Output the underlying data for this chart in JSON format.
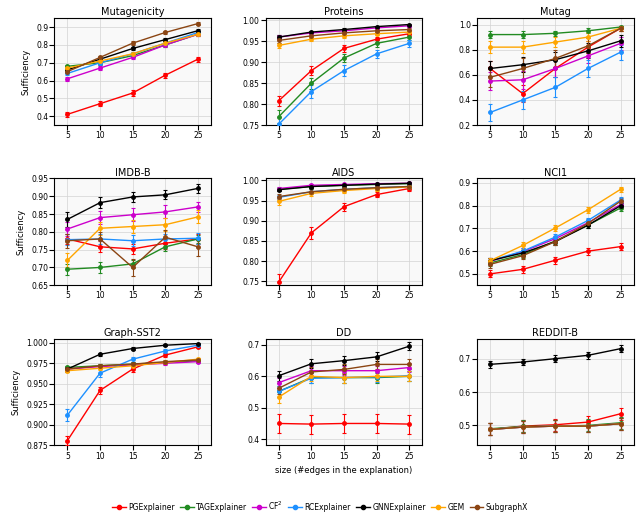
{
  "x": [
    5,
    10,
    15,
    20,
    25
  ],
  "datasets": {
    "Mutagenicity": {
      "PGExplainer": {
        "y": [
          0.41,
          0.47,
          0.53,
          0.63,
          0.72
        ],
        "err": [
          0.015,
          0.015,
          0.015,
          0.015,
          0.015
        ]
      },
      "TAGExplainer": {
        "y": [
          0.68,
          0.7,
          0.74,
          0.8,
          0.86
        ],
        "err": [
          0.01,
          0.01,
          0.01,
          0.01,
          0.01
        ]
      },
      "CF2": {
        "y": [
          0.61,
          0.67,
          0.73,
          0.8,
          0.86
        ],
        "err": [
          0.01,
          0.01,
          0.01,
          0.01,
          0.01
        ]
      },
      "RCExplainer": {
        "y": [
          0.64,
          0.7,
          0.75,
          0.81,
          0.87
        ],
        "err": [
          0.01,
          0.01,
          0.01,
          0.01,
          0.01
        ]
      },
      "GNNExplainer": {
        "y": [
          0.66,
          0.72,
          0.78,
          0.83,
          0.88
        ],
        "err": [
          0.01,
          0.01,
          0.01,
          0.01,
          0.01
        ]
      },
      "GEM": {
        "y": [
          0.67,
          0.71,
          0.75,
          0.81,
          0.86
        ],
        "err": [
          0.01,
          0.01,
          0.01,
          0.01,
          0.01
        ]
      },
      "SubgraphX": {
        "y": [
          0.65,
          0.73,
          0.81,
          0.87,
          0.92
        ],
        "err": [
          0.01,
          0.01,
          0.01,
          0.01,
          0.01
        ]
      }
    },
    "Proteins": {
      "PGExplainer": {
        "y": [
          0.808,
          0.88,
          0.933,
          0.955,
          0.968
        ],
        "err": [
          0.012,
          0.01,
          0.008,
          0.006,
          0.005
        ]
      },
      "TAGExplainer": {
        "y": [
          0.77,
          0.85,
          0.91,
          0.945,
          0.96
        ],
        "err": [
          0.015,
          0.013,
          0.01,
          0.008,
          0.007
        ]
      },
      "CF2": {
        "y": [
          0.96,
          0.97,
          0.975,
          0.982,
          0.987
        ],
        "err": [
          0.004,
          0.003,
          0.003,
          0.003,
          0.002
        ]
      },
      "RCExplainer": {
        "y": [
          0.752,
          0.83,
          0.88,
          0.92,
          0.945
        ],
        "err": [
          0.018,
          0.015,
          0.013,
          0.01,
          0.008
        ]
      },
      "GNNExplainer": {
        "y": [
          0.96,
          0.972,
          0.978,
          0.985,
          0.99
        ],
        "err": [
          0.004,
          0.003,
          0.003,
          0.002,
          0.002
        ]
      },
      "GEM": {
        "y": [
          0.94,
          0.955,
          0.963,
          0.968,
          0.972
        ],
        "err": [
          0.006,
          0.005,
          0.005,
          0.004,
          0.004
        ]
      },
      "SubgraphX": {
        "y": [
          0.952,
          0.963,
          0.97,
          0.975,
          0.978
        ],
        "err": [
          0.005,
          0.004,
          0.004,
          0.003,
          0.003
        ]
      }
    },
    "Mutag": {
      "PGExplainer": {
        "y": [
          0.65,
          0.45,
          0.65,
          0.82,
          0.97
        ],
        "err": [
          0.06,
          0.07,
          0.07,
          0.05,
          0.02
        ]
      },
      "TAGExplainer": {
        "y": [
          0.92,
          0.92,
          0.93,
          0.95,
          0.98
        ],
        "err": [
          0.03,
          0.03,
          0.02,
          0.02,
          0.01
        ]
      },
      "CF2": {
        "y": [
          0.55,
          0.56,
          0.65,
          0.75,
          0.85
        ],
        "err": [
          0.07,
          0.07,
          0.07,
          0.06,
          0.05
        ]
      },
      "RCExplainer": {
        "y": [
          0.3,
          0.4,
          0.5,
          0.65,
          0.78
        ],
        "err": [
          0.07,
          0.07,
          0.08,
          0.07,
          0.06
        ]
      },
      "GNNExplainer": {
        "y": [
          0.65,
          0.68,
          0.72,
          0.79,
          0.87
        ],
        "err": [
          0.06,
          0.06,
          0.06,
          0.06,
          0.05
        ]
      },
      "GEM": {
        "y": [
          0.82,
          0.82,
          0.86,
          0.9,
          0.97
        ],
        "err": [
          0.05,
          0.05,
          0.04,
          0.03,
          0.02
        ]
      },
      "SubgraphX": {
        "y": [
          0.58,
          0.65,
          0.73,
          0.83,
          0.97
        ],
        "err": [
          0.08,
          0.08,
          0.07,
          0.06,
          0.02
        ]
      }
    },
    "IMDB-B": {
      "PGExplainer": {
        "y": [
          0.78,
          0.758,
          0.752,
          0.768,
          0.78
        ],
        "err": [
          0.015,
          0.015,
          0.015,
          0.015,
          0.015
        ]
      },
      "TAGExplainer": {
        "y": [
          0.695,
          0.7,
          0.71,
          0.758,
          0.78
        ],
        "err": [
          0.015,
          0.015,
          0.012,
          0.012,
          0.01
        ]
      },
      "CF2": {
        "y": [
          0.808,
          0.84,
          0.848,
          0.856,
          0.87
        ],
        "err": [
          0.02,
          0.018,
          0.018,
          0.018,
          0.015
        ]
      },
      "RCExplainer": {
        "y": [
          0.778,
          0.78,
          0.775,
          0.78,
          0.782
        ],
        "err": [
          0.015,
          0.015,
          0.015,
          0.015,
          0.015
        ]
      },
      "GNNExplainer": {
        "y": [
          0.835,
          0.882,
          0.898,
          0.904,
          0.922
        ],
        "err": [
          0.02,
          0.016,
          0.015,
          0.013,
          0.012
        ]
      },
      "GEM": {
        "y": [
          0.72,
          0.81,
          0.815,
          0.82,
          0.842
        ],
        "err": [
          0.02,
          0.018,
          0.018,
          0.018,
          0.018
        ]
      },
      "SubgraphX": {
        "y": [
          0.775,
          0.78,
          0.7,
          0.785,
          0.758
        ],
        "err": [
          0.02,
          0.02,
          0.025,
          0.02,
          0.025
        ]
      }
    },
    "AIDS": {
      "PGExplainer": {
        "y": [
          0.748,
          0.87,
          0.935,
          0.965,
          0.98
        ],
        "err": [
          0.02,
          0.015,
          0.01,
          0.007,
          0.005
        ]
      },
      "TAGExplainer": {
        "y": [
          0.978,
          0.985,
          0.988,
          0.99,
          0.992
        ],
        "err": [
          0.004,
          0.003,
          0.003,
          0.003,
          0.002
        ]
      },
      "CF2": {
        "y": [
          0.98,
          0.988,
          0.99,
          0.992,
          0.993
        ],
        "err": [
          0.003,
          0.002,
          0.002,
          0.002,
          0.002
        ]
      },
      "RCExplainer": {
        "y": [
          0.958,
          0.972,
          0.978,
          0.982,
          0.985
        ],
        "err": [
          0.007,
          0.006,
          0.005,
          0.005,
          0.004
        ]
      },
      "GNNExplainer": {
        "y": [
          0.977,
          0.985,
          0.988,
          0.991,
          0.993
        ],
        "err": [
          0.004,
          0.003,
          0.003,
          0.002,
          0.002
        ]
      },
      "GEM": {
        "y": [
          0.948,
          0.968,
          0.975,
          0.98,
          0.984
        ],
        "err": [
          0.008,
          0.007,
          0.006,
          0.006,
          0.005
        ]
      },
      "SubgraphX": {
        "y": [
          0.96,
          0.972,
          0.978,
          0.982,
          0.985
        ],
        "err": [
          0.007,
          0.006,
          0.005,
          0.005,
          0.004
        ]
      }
    },
    "NCI1": {
      "PGExplainer": {
        "y": [
          0.5,
          0.52,
          0.56,
          0.6,
          0.62
        ],
        "err": [
          0.015,
          0.015,
          0.015,
          0.015,
          0.015
        ]
      },
      "TAGExplainer": {
        "y": [
          0.548,
          0.585,
          0.645,
          0.715,
          0.79
        ],
        "err": [
          0.014,
          0.014,
          0.014,
          0.013,
          0.012
        ]
      },
      "CF2": {
        "y": [
          0.555,
          0.598,
          0.655,
          0.725,
          0.805
        ],
        "err": [
          0.014,
          0.014,
          0.013,
          0.013,
          0.012
        ]
      },
      "RCExplainer": {
        "y": [
          0.558,
          0.6,
          0.662,
          0.735,
          0.825
        ],
        "err": [
          0.014,
          0.014,
          0.013,
          0.013,
          0.012
        ]
      },
      "GNNExplainer": {
        "y": [
          0.558,
          0.592,
          0.642,
          0.714,
          0.8
        ],
        "err": [
          0.014,
          0.014,
          0.013,
          0.013,
          0.012
        ]
      },
      "GEM": {
        "y": [
          0.558,
          0.625,
          0.702,
          0.782,
          0.872
        ],
        "err": [
          0.014,
          0.014,
          0.013,
          0.013,
          0.012
        ]
      },
      "SubgraphX": {
        "y": [
          0.542,
          0.58,
          0.642,
          0.722,
          0.82
        ],
        "err": [
          0.014,
          0.014,
          0.013,
          0.013,
          0.012
        ]
      }
    },
    "Graph-SST2": {
      "PGExplainer": {
        "y": [
          0.881,
          0.942,
          0.968,
          0.985,
          0.995
        ],
        "err": [
          0.005,
          0.004,
          0.003,
          0.002,
          0.001
        ]
      },
      "TAGExplainer": {
        "y": [
          0.97,
          0.972,
          0.974,
          0.976,
          0.978
        ],
        "err": [
          0.002,
          0.002,
          0.002,
          0.002,
          0.002
        ]
      },
      "CF2": {
        "y": [
          0.968,
          0.971,
          0.973,
          0.975,
          0.977
        ],
        "err": [
          0.002,
          0.002,
          0.002,
          0.002,
          0.002
        ]
      },
      "RCExplainer": {
        "y": [
          0.912,
          0.963,
          0.98,
          0.99,
          0.997
        ],
        "err": [
          0.007,
          0.005,
          0.003,
          0.002,
          0.001
        ]
      },
      "GNNExplainer": {
        "y": [
          0.968,
          0.986,
          0.993,
          0.997,
          0.999
        ],
        "err": [
          0.003,
          0.002,
          0.002,
          0.001,
          0.001
        ]
      },
      "GEM": {
        "y": [
          0.966,
          0.969,
          0.972,
          0.976,
          0.98
        ],
        "err": [
          0.002,
          0.002,
          0.002,
          0.002,
          0.002
        ]
      },
      "SubgraphX": {
        "y": [
          0.968,
          0.972,
          0.974,
          0.977,
          0.979
        ],
        "err": [
          0.002,
          0.002,
          0.002,
          0.002,
          0.002
        ]
      }
    },
    "DD": {
      "PGExplainer": {
        "y": [
          0.45,
          0.448,
          0.45,
          0.45,
          0.448
        ],
        "err": [
          0.03,
          0.03,
          0.03,
          0.03,
          0.03
        ]
      },
      "TAGExplainer": {
        "y": [
          0.552,
          0.596,
          0.596,
          0.596,
          0.6
        ],
        "err": [
          0.018,
          0.016,
          0.016,
          0.016,
          0.016
        ]
      },
      "CF2": {
        "y": [
          0.58,
          0.618,
          0.618,
          0.618,
          0.628
        ],
        "err": [
          0.016,
          0.014,
          0.014,
          0.014,
          0.014
        ]
      },
      "RCExplainer": {
        "y": [
          0.552,
          0.594,
          0.596,
          0.598,
          0.602
        ],
        "err": [
          0.018,
          0.016,
          0.016,
          0.016,
          0.016
        ]
      },
      "GNNExplainer": {
        "y": [
          0.602,
          0.64,
          0.65,
          0.662,
          0.696
        ],
        "err": [
          0.016,
          0.014,
          0.014,
          0.014,
          0.013
        ]
      },
      "GEM": {
        "y": [
          0.534,
          0.6,
          0.596,
          0.6,
          0.6
        ],
        "err": [
          0.018,
          0.016,
          0.016,
          0.016,
          0.016
        ]
      },
      "SubgraphX": {
        "y": [
          0.562,
          0.614,
          0.622,
          0.638,
          0.638
        ],
        "err": [
          0.018,
          0.016,
          0.016,
          0.016,
          0.016
        ]
      }
    },
    "REDDIT-B": {
      "PGExplainer": {
        "y": [
          0.488,
          0.498,
          0.502,
          0.51,
          0.535
        ],
        "err": [
          0.018,
          0.018,
          0.018,
          0.018,
          0.018
        ]
      },
      "TAGExplainer": {
        "y": [
          0.49,
          0.497,
          0.498,
          0.5,
          0.508
        ],
        "err": [
          0.018,
          0.018,
          0.018,
          0.018,
          0.018
        ]
      },
      "CF2": {
        "y": [
          0.488,
          0.495,
          0.498,
          0.498,
          0.505
        ],
        "err": [
          0.018,
          0.018,
          0.018,
          0.018,
          0.018
        ]
      },
      "RCExplainer": {
        "y": [
          0.488,
          0.495,
          0.498,
          0.498,
          0.505
        ],
        "err": [
          0.018,
          0.018,
          0.018,
          0.018,
          0.018
        ]
      },
      "GNNExplainer": {
        "y": [
          0.683,
          0.69,
          0.7,
          0.71,
          0.73
        ],
        "err": [
          0.01,
          0.01,
          0.01,
          0.01,
          0.01
        ]
      },
      "GEM": {
        "y": [
          0.488,
          0.495,
          0.498,
          0.498,
          0.505
        ],
        "err": [
          0.018,
          0.018,
          0.018,
          0.018,
          0.018
        ]
      },
      "SubgraphX": {
        "y": [
          0.488,
          0.495,
          0.498,
          0.498,
          0.505
        ],
        "err": [
          0.018,
          0.018,
          0.018,
          0.018,
          0.018
        ]
      }
    }
  },
  "colors": {
    "PGExplainer": "#ff0000",
    "TAGExplainer": "#228B22",
    "CF2": "#cc00cc",
    "RCExplainer": "#1E90FF",
    "GNNExplainer": "#000000",
    "GEM": "#FFA500",
    "SubgraphX": "#8B4513"
  },
  "ylims": {
    "Mutagenicity": [
      0.35,
      0.95
    ],
    "Proteins": [
      0.75,
      1.005
    ],
    "Mutag": [
      0.2,
      1.05
    ],
    "IMDB-B": [
      0.65,
      0.95
    ],
    "AIDS": [
      0.74,
      1.005
    ],
    "NCI1": [
      0.45,
      0.92
    ],
    "Graph-SST2": [
      0.875,
      1.005
    ],
    "DD": [
      0.38,
      0.72
    ],
    "REDDIT-B": [
      0.44,
      0.76
    ]
  },
  "grid_order": [
    "Mutagenicity",
    "Proteins",
    "Mutag",
    "IMDB-B",
    "AIDS",
    "NCI1",
    "Graph-SST2",
    "DD",
    "REDDIT-B"
  ],
  "explainer_order": [
    "PGExplainer",
    "TAGExplainer",
    "CF2",
    "RCExplainer",
    "GNNExplainer",
    "GEM",
    "SubgraphX"
  ]
}
